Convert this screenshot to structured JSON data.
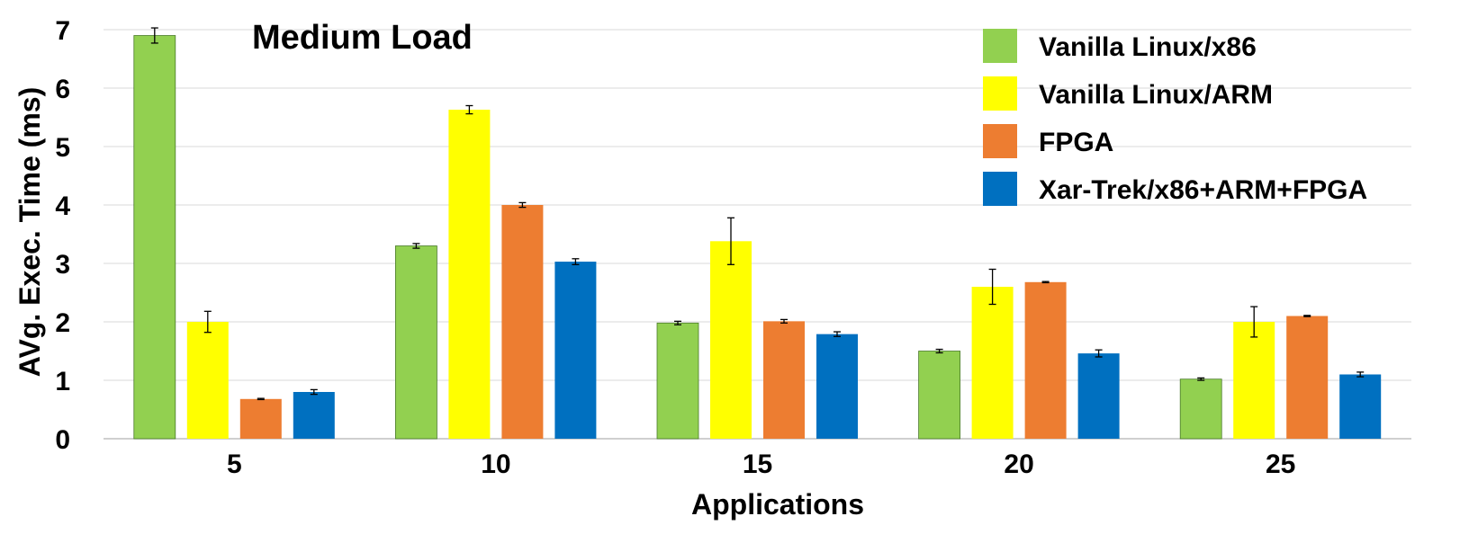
{
  "chart_data": {
    "type": "bar",
    "title": "Medium Load",
    "xlabel": "Applications",
    "ylabel": "AVg. Exec. Time (ms)",
    "ylim": [
      0,
      7
    ],
    "yticks": [
      "0",
      "1",
      "2",
      "3",
      "4",
      "5",
      "6",
      "7"
    ],
    "grid": true,
    "legend_position": "top-right",
    "categories": [
      "5",
      "10",
      "15",
      "20",
      "25"
    ],
    "series": [
      {
        "name": "Vanilla Linux/x86",
        "color": "#92d050",
        "values": [
          6.9,
          3.3,
          1.98,
          1.5,
          1.02
        ],
        "errors": [
          0.13,
          0.04,
          0.03,
          0.03,
          0.02
        ]
      },
      {
        "name": "Vanilla Linux/ARM",
        "color": "#ffff00",
        "values": [
          2.0,
          5.63,
          3.38,
          2.6,
          2.0
        ],
        "errors": [
          0.18,
          0.07,
          0.4,
          0.3,
          0.26
        ]
      },
      {
        "name": "FPGA",
        "color": "#ed7d31",
        "values": [
          0.68,
          4.0,
          2.01,
          2.68,
          2.1
        ],
        "errors": [
          0.01,
          0.04,
          0.03,
          0.01,
          0.01
        ]
      },
      {
        "name": "Xar-Trek/x86+ARM+FPGA",
        "color": "#0070c0",
        "values": [
          0.8,
          3.03,
          1.79,
          1.46,
          1.1
        ],
        "errors": [
          0.04,
          0.05,
          0.04,
          0.06,
          0.04
        ]
      }
    ]
  }
}
